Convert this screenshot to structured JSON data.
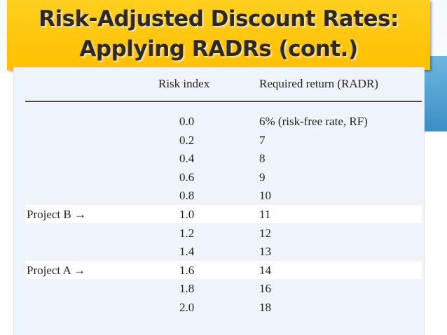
{
  "slide": {
    "title": "Risk-Adjusted Discount Rates:\nApplying RADRs (cont.)"
  },
  "table": {
    "headers": {
      "risk_index": "Risk index",
      "radr": "Required return (RADR)"
    },
    "rows": [
      {
        "label": "",
        "risk_index": "0.0",
        "radr": "6%  (risk-free rate, RF)",
        "highlight": false
      },
      {
        "label": "",
        "risk_index": "0.2",
        "radr": "7",
        "highlight": false
      },
      {
        "label": "",
        "risk_index": "0.4",
        "radr": "8",
        "highlight": false
      },
      {
        "label": "",
        "risk_index": "0.6",
        "radr": "9",
        "highlight": false
      },
      {
        "label": "",
        "risk_index": "0.8",
        "radr": "10",
        "highlight": false
      },
      {
        "label": "Project B →",
        "risk_index": "1.0",
        "radr": "11",
        "highlight": true
      },
      {
        "label": "",
        "risk_index": "1.2",
        "radr": "12",
        "highlight": false
      },
      {
        "label": "",
        "risk_index": "1.4",
        "radr": "13",
        "highlight": false
      },
      {
        "label": "Project A →",
        "risk_index": "1.6",
        "radr": "14",
        "highlight": true
      },
      {
        "label": "",
        "risk_index": "1.8",
        "radr": "16",
        "highlight": false
      },
      {
        "label": "",
        "risk_index": "2.0",
        "radr": "18",
        "highlight": false
      }
    ]
  }
}
